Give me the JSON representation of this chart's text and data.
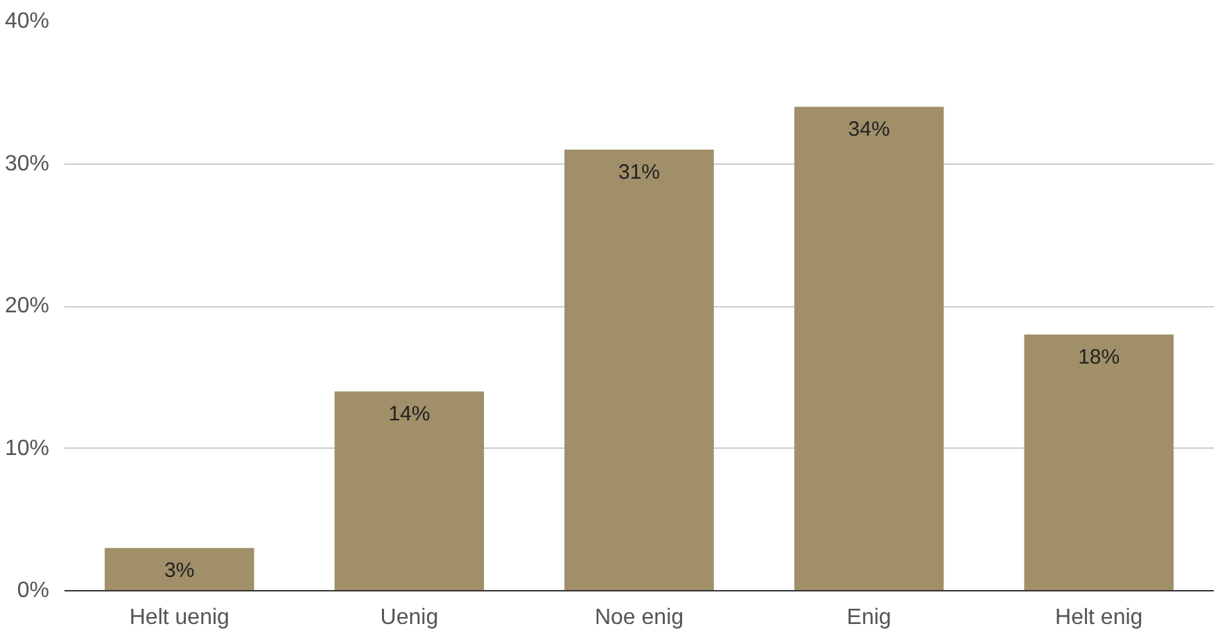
{
  "chart_data": {
    "type": "bar",
    "categories": [
      "Helt uenig",
      "Uenig",
      "Noe enig",
      "Enig",
      "Helt enig"
    ],
    "values": [
      3,
      14,
      31,
      34,
      18
    ],
    "value_labels": [
      "3%",
      "14%",
      "31%",
      "34%",
      "18%"
    ],
    "color": "#a08f68",
    "ylim": [
      0,
      40
    ],
    "yticks": [
      {
        "value": 0,
        "label": "0%"
      },
      {
        "value": 10,
        "label": "10%"
      },
      {
        "value": 20,
        "label": "20%"
      },
      {
        "value": 30,
        "label": "30%"
      },
      {
        "value": 40,
        "label": "40%"
      }
    ],
    "grid": "y"
  }
}
